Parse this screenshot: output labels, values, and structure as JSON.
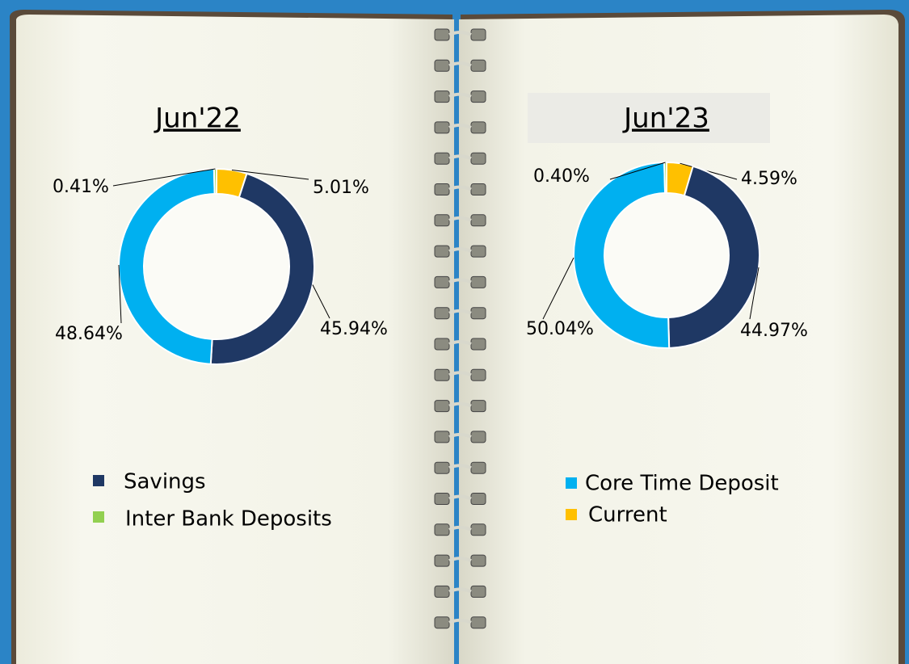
{
  "chart_data": [
    {
      "type": "donut",
      "title": "Jun'22",
      "categories": [
        "Current",
        "Savings",
        "Core Time Deposit",
        "Inter Bank Deposits"
      ],
      "values": [
        5.01,
        45.94,
        48.64,
        0.41
      ],
      "value_labels": [
        "5.01%",
        "45.94%",
        "48.64%",
        "0.41%"
      ],
      "colors": [
        "#ffc000",
        "#1f3864",
        "#00b0f0",
        "#92d050"
      ]
    },
    {
      "type": "donut",
      "title": "Jun'23",
      "categories": [
        "Current",
        "Savings",
        "Core Time Deposit",
        "Inter Bank Deposits"
      ],
      "values": [
        4.59,
        44.97,
        50.04,
        0.4
      ],
      "value_labels": [
        "4.59%",
        "44.97%",
        "50.04%",
        "0.40%"
      ],
      "colors": [
        "#ffc000",
        "#1f3864",
        "#00b0f0",
        "#92d050"
      ]
    }
  ]
}
